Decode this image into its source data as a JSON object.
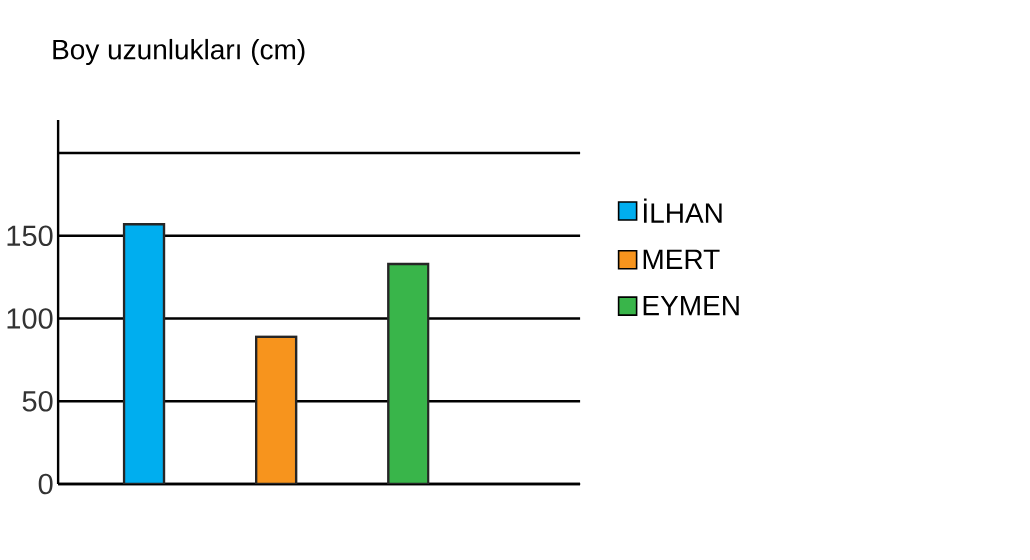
{
  "chart_data": {
    "type": "bar",
    "title": "Boy uzunlukları (cm)",
    "categories": [
      null,
      null,
      null
    ],
    "series": [
      {
        "name": "İLHAN",
        "color": "#00aeef",
        "values": [
          157,
          null,
          null
        ]
      },
      {
        "name": "MERT",
        "color": "#f7941d",
        "values": [
          null,
          89,
          null
        ]
      },
      {
        "name": "EYMEN",
        "color": "#39b54a",
        "values": [
          null,
          null,
          133
        ]
      }
    ],
    "ylim": [
      0,
      220
    ],
    "yticks": [
      0,
      50,
      100,
      150,
      {
        "value": 200,
        "label": null
      }
    ],
    "grid": "y",
    "legend": "right"
  }
}
